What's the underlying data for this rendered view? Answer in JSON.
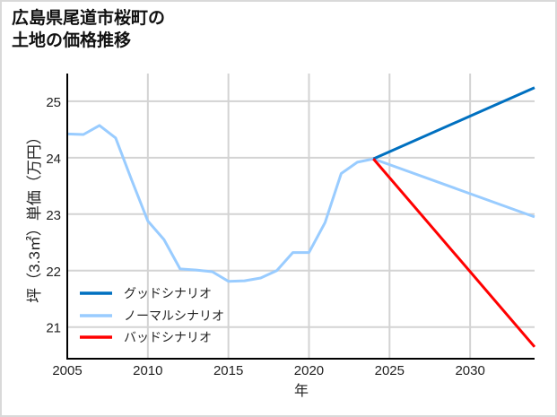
{
  "title": {
    "line1": "広島県尾道市桜町の",
    "line2": "土地の価格推移"
  },
  "colors": {
    "good": "#0070c0",
    "normal": "#99ccff",
    "bad": "#ff0000",
    "grid": "#d3d3d3",
    "axis": "#000000",
    "border": "#d9d9d9"
  },
  "chart_data": {
    "type": "line",
    "title": "広島県尾道市桜町の土地の価格推移",
    "xlabel": "年",
    "ylabel": "坪（3.3㎡）単価（万円）",
    "xlim": [
      2005,
      2034
    ],
    "ylim": [
      20.44,
      25.49
    ],
    "xticks": [
      2005,
      2010,
      2015,
      2020,
      2025,
      2030
    ],
    "yticks": [
      21,
      22,
      23,
      24,
      25
    ],
    "grid": true,
    "legend_position": "lower left",
    "series": [
      {
        "name": "グッドシナリオ",
        "color": "#0070c0",
        "x": [
          2024,
          2034
        ],
        "values": [
          23.98,
          25.24
        ]
      },
      {
        "name": "ノーマルシナリオ",
        "color": "#99ccff",
        "x": [
          2005,
          2006,
          2007,
          2008,
          2009,
          2010,
          2011,
          2012,
          2013,
          2014,
          2015,
          2016,
          2017,
          2018,
          2019,
          2020,
          2021,
          2022,
          2023,
          2024,
          2034
        ],
        "values": [
          24.42,
          24.41,
          24.57,
          24.35,
          23.6,
          22.88,
          22.55,
          22.03,
          22.01,
          21.98,
          21.81,
          21.82,
          21.87,
          22.0,
          22.32,
          22.32,
          22.85,
          23.72,
          23.92,
          23.98,
          22.95
        ]
      },
      {
        "name": "バッドシナリオ",
        "color": "#ff0000",
        "x": [
          2024,
          2034
        ],
        "values": [
          23.98,
          20.65
        ]
      }
    ]
  }
}
